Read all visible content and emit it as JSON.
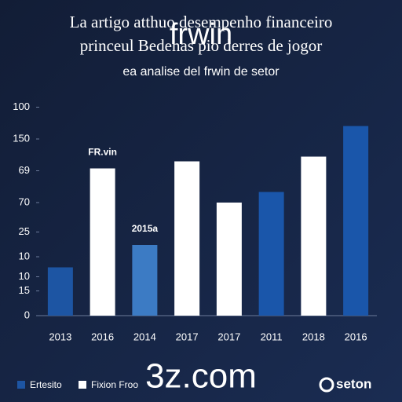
{
  "chart_data": {
    "type": "bar",
    "title": "La artigo atthuo desempenho financeiro",
    "title2": "princeul Bedenas pio derres de jogor",
    "subtitle": "ea analise del frwin de setor",
    "watermark": "frwin",
    "footer_watermark": "3z.com",
    "logo": "seton",
    "categories": [
      "2013",
      "2016",
      "2014",
      "2017",
      "2017",
      "2011",
      "2018",
      "2016"
    ],
    "values": [
      41,
      125,
      60,
      131,
      96,
      105,
      135,
      161
    ],
    "colors": [
      "#1d55a3",
      "#ffffff",
      "#3c7bc4",
      "#ffffff",
      "#ffffff",
      "#1a56aa",
      "#ffffff",
      "#1a56aa"
    ],
    "annotations": [
      {
        "text": "FR.vin",
        "index": 1
      },
      {
        "text": "2015a",
        "index": 2
      }
    ],
    "legend": [
      {
        "name": "Ertesito",
        "color": "#1d55a3"
      },
      {
        "name": "Fixion Froo",
        "color": "#ffffff"
      }
    ],
    "ylim": [
      0,
      200
    ],
    "yticks": [
      {
        "value": 177,
        "label": "100"
      },
      150,
      {
        "value": 123,
        "label": "69"
      },
      {
        "value": 96,
        "label": "70"
      },
      {
        "value": 71,
        "label": "25"
      },
      {
        "value": 50,
        "label": "10"
      },
      {
        "value": 33,
        "label": "10"
      },
      {
        "value": 21,
        "label": "15"
      },
      0
    ]
  }
}
